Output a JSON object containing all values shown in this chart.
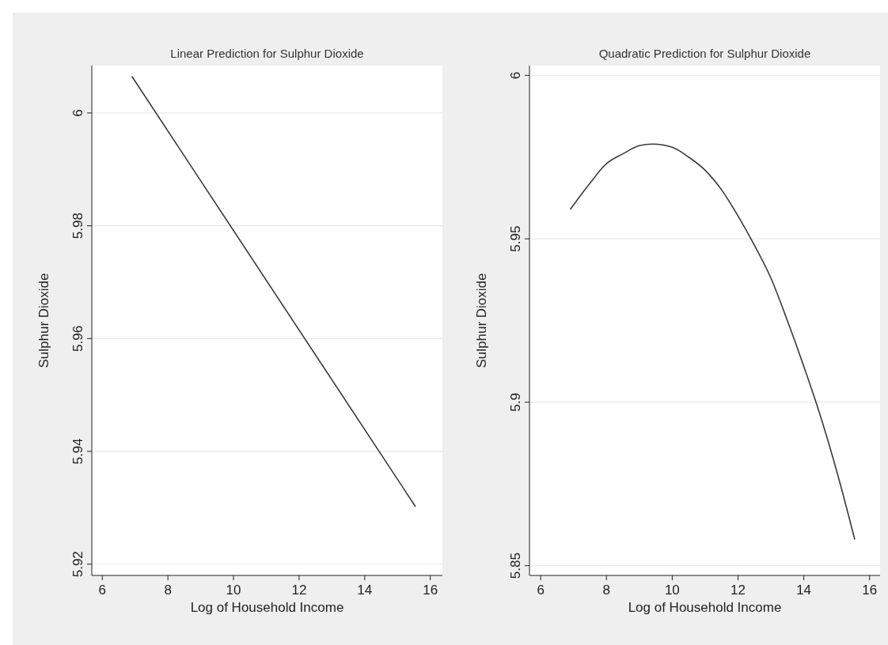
{
  "chart_data": [
    {
      "type": "line",
      "title": "Linear Prediction for Sulphur Dioxide",
      "xlabel": "Log of Household Income",
      "ylabel": "Sulphur Dioxide",
      "xlim": [
        5.68,
        16.37
      ],
      "xticks": [
        6,
        8,
        10,
        12,
        14,
        16
      ],
      "ylim": [
        5.918,
        6.0084
      ],
      "yticks": [
        5.92,
        5.94,
        5.96,
        5.98,
        6
      ],
      "grid": "y",
      "series": [
        {
          "color": "#3a3a3a",
          "x": [
            6.9,
            15.55
          ],
          "values": [
            6.0065,
            5.9302
          ]
        }
      ]
    },
    {
      "type": "line",
      "title": "Quadratic Prediction for Sulphur Dioxide",
      "xlabel": "Log of Household Income",
      "ylabel": "Sulphur Dioxide",
      "xlim": [
        5.66,
        16.32
      ],
      "xticks": [
        6,
        8,
        10,
        12,
        14,
        16
      ],
      "ylim": [
        5.847,
        6.003
      ],
      "yticks": [
        5.85,
        5.9,
        5.95,
        6
      ],
      "grid": "y",
      "series": [
        {
          "color": "#3a3a3a",
          "x": [
            6.9,
            7.5,
            8,
            8.5,
            9,
            9.4,
            10,
            10.5,
            11,
            11.5,
            12,
            12.5,
            13,
            13.5,
            14,
            14.5,
            15,
            15.55
          ],
          "values": [
            5.959,
            5.967,
            5.973,
            5.976,
            5.9785,
            5.979,
            5.978,
            5.975,
            5.971,
            5.965,
            5.957,
            5.948,
            5.938,
            5.925,
            5.911,
            5.896,
            5.879,
            5.858
          ]
        }
      ]
    }
  ]
}
